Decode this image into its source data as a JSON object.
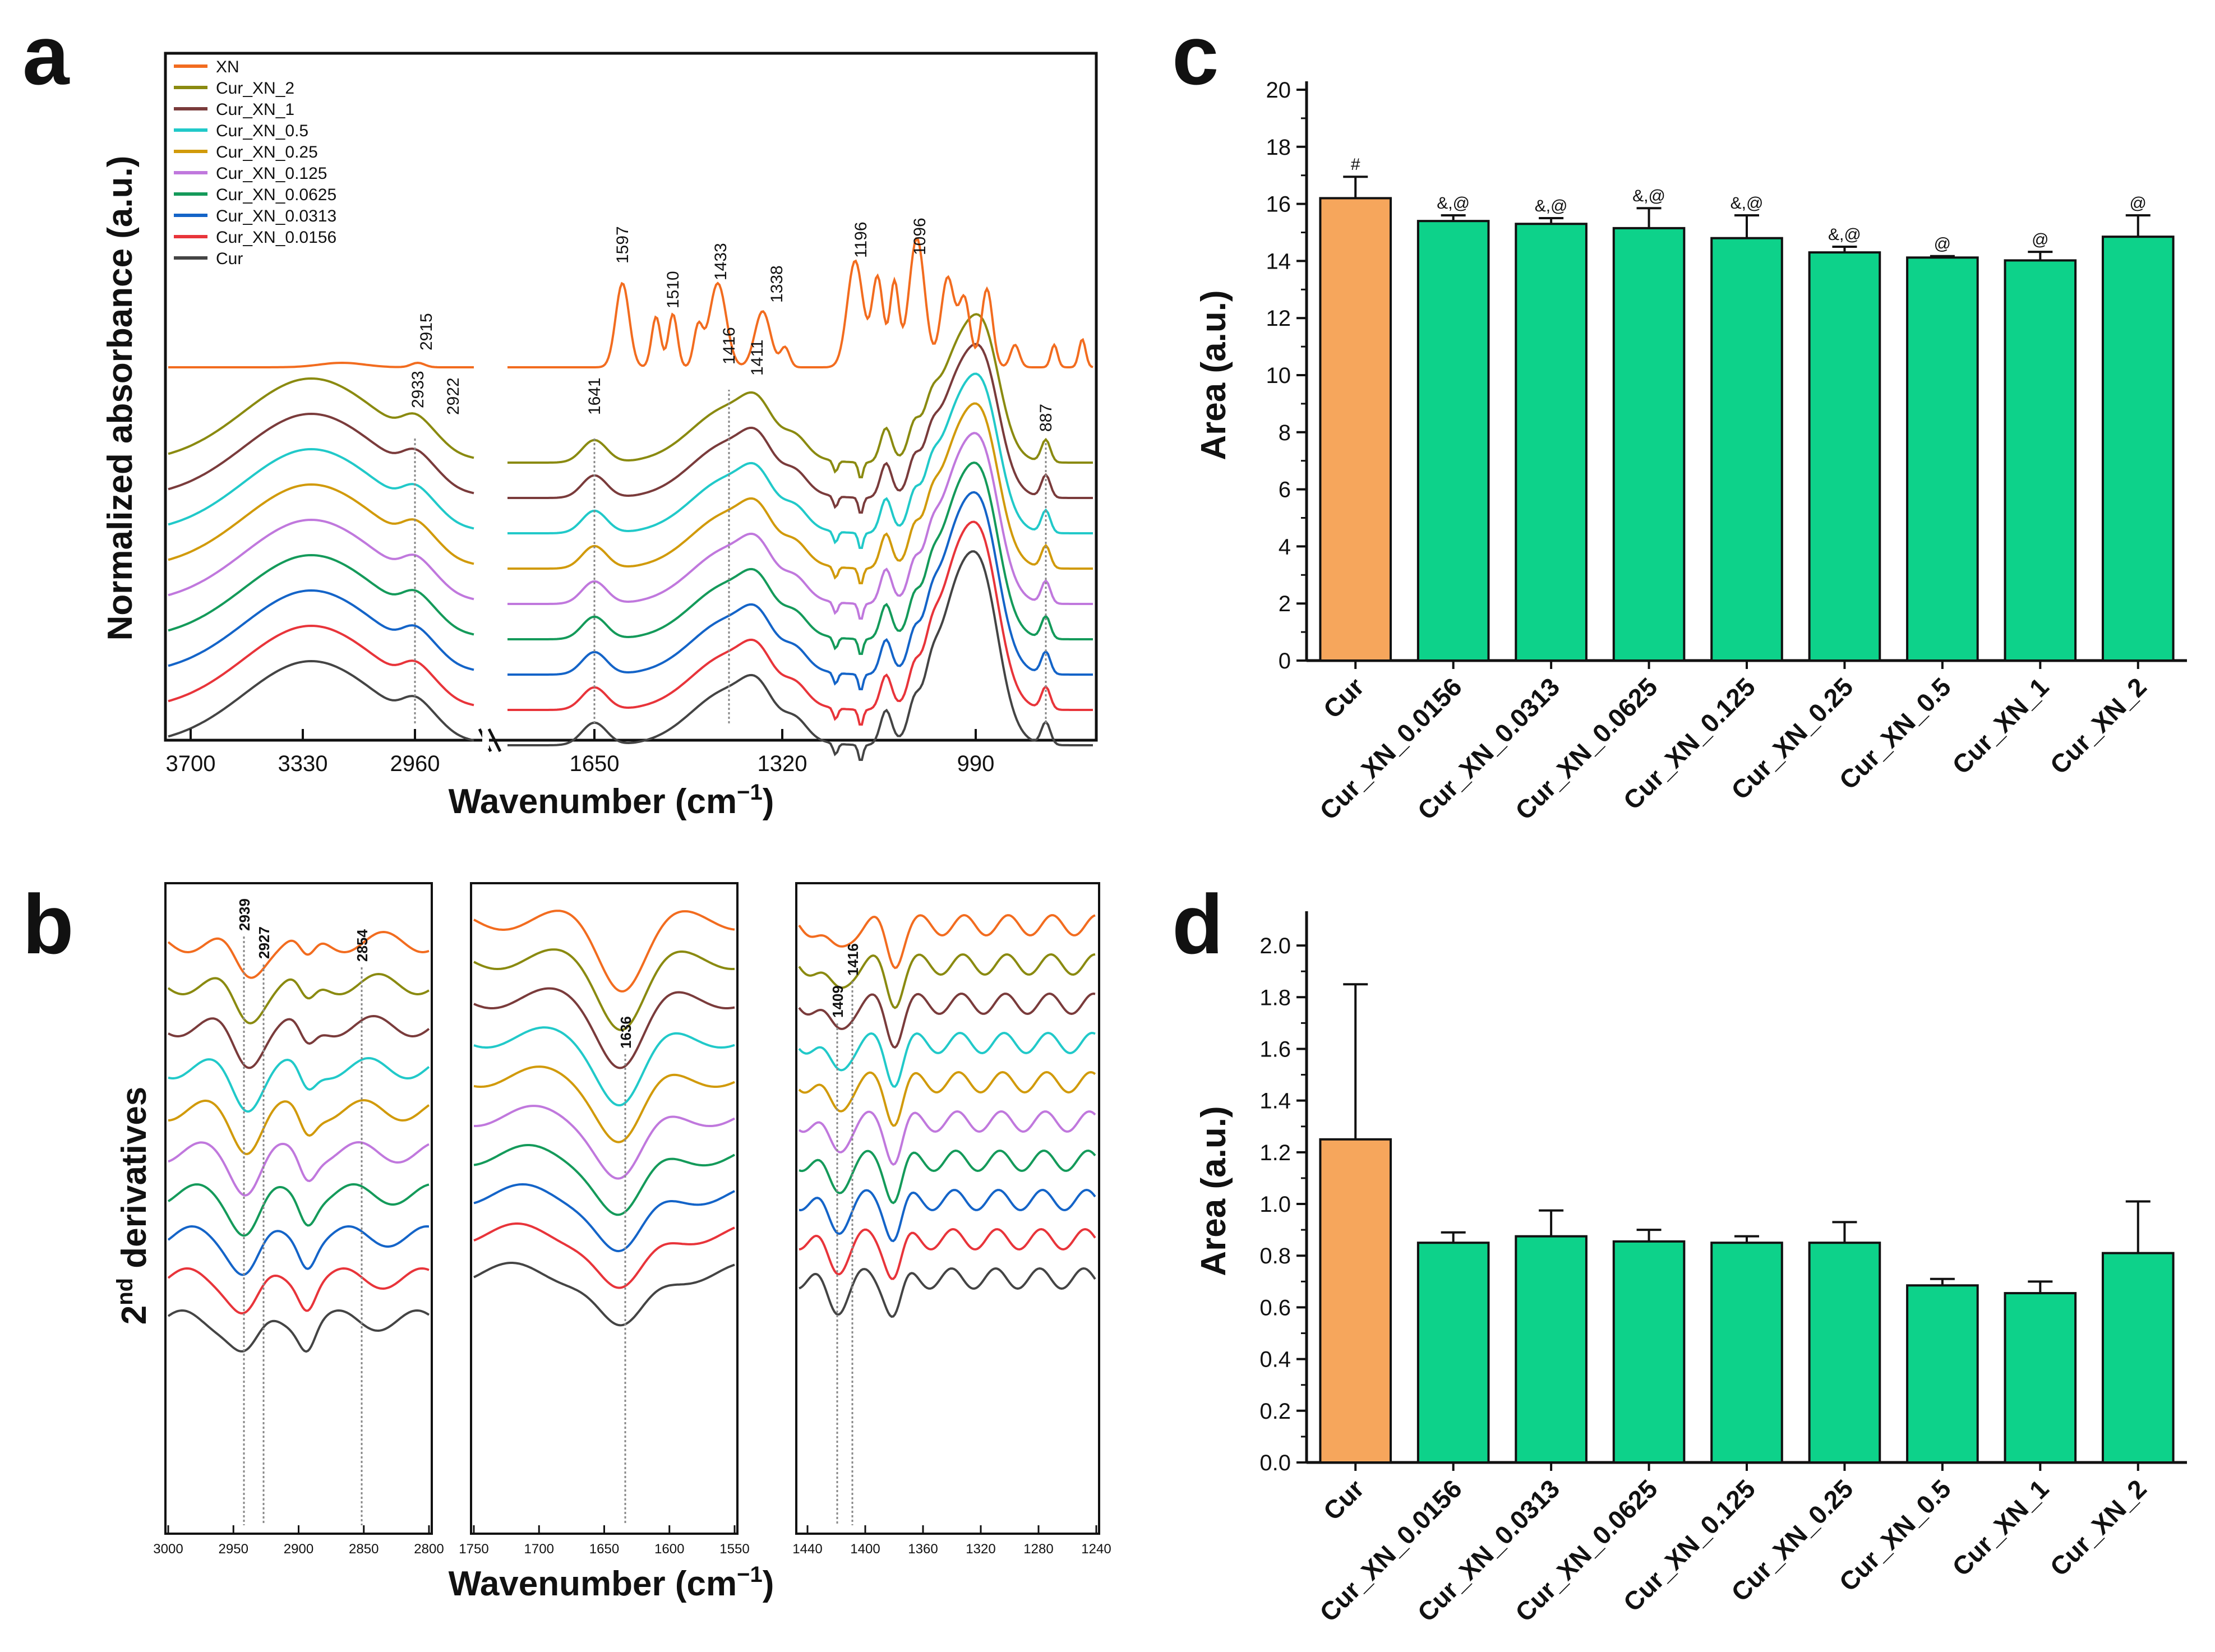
{
  "panels": {
    "a": {
      "letter": "a",
      "ylabel": "Normalized absorbance (a.u.)",
      "xlabel_main": "Wavenumber (cm",
      "xlabel_sup": "−1",
      "xlabel_close": ")",
      "xticks_left": [
        "3700",
        "3330",
        "2960"
      ],
      "xticks_right": [
        "1650",
        "1320",
        "990"
      ],
      "peaks_xn": [
        "2915",
        "1597",
        "1510",
        "1433",
        "1338",
        "1196",
        "1096"
      ],
      "peaks_other": [
        "2933",
        "2922",
        "1641",
        "1416",
        "1411",
        "887"
      ],
      "legend": [
        "XN",
        "Cur_XN_2",
        "Cur_XN_1",
        "Cur_XN_0.5",
        "Cur_XN_0.25",
        "Cur_XN_0.125",
        "Cur_XN_0.0625",
        "Cur_XN_0.0313",
        "Cur_XN_0.0156",
        "Cur"
      ]
    },
    "b": {
      "letter": "b",
      "ylabel_pre": "2",
      "ylabel_sup": "nd",
      "ylabel_post": " derivatives",
      "xlabel_main": "Wavenumber (cm",
      "xlabel_sup": "−1",
      "xlabel_close": ")",
      "sub1_ticks": [
        "3000",
        "2950",
        "2900",
        "2850",
        "2800"
      ],
      "sub2_ticks": [
        "1750",
        "1700",
        "1650",
        "1600",
        "1550"
      ],
      "sub3_ticks": [
        "1440",
        "1400",
        "1360",
        "1320",
        "1280",
        "1240"
      ],
      "sub1_peaks": [
        "2939",
        "2927",
        "2854"
      ],
      "sub2_peaks": [
        "1636"
      ],
      "sub3_peaks": [
        "1409",
        "1416"
      ]
    },
    "c": {
      "letter": "c"
    },
    "d": {
      "letter": "d"
    }
  },
  "series_colors": {
    "XN": "#f26c1f",
    "Cur_XN_2": "#8a8a10",
    "Cur_XN_1": "#7a3b3b",
    "Cur_XN_0.5": "#21c9c9",
    "Cur_XN_0.25": "#d19a0a",
    "Cur_XN_0.125": "#c078dd",
    "Cur_XN_0.0625": "#149a5a",
    "Cur_XN_0.0313": "#1464c8",
    "Cur_XN_0.0156": "#e8343a",
    "Cur": "#444444"
  },
  "chart_data": [
    {
      "panel": "c",
      "type": "bar",
      "title": "",
      "xlabel": "",
      "ylabel": "Area (a.u.)",
      "categories": [
        "Cur",
        "Cur_XN_0.0156",
        "Cur_XN_0.0313",
        "Cur_XN_0.0625",
        "Cur_XN_0.125",
        "Cur_XN_0.25",
        "Cur_XN_0.5",
        "Cur_XN_1",
        "Cur_XN_2"
      ],
      "values": [
        16.2,
        15.4,
        15.3,
        15.15,
        14.8,
        14.3,
        14.12,
        14.02,
        14.85
      ],
      "errors": [
        0.75,
        0.2,
        0.2,
        0.7,
        0.8,
        0.2,
        0.05,
        0.3,
        0.75
      ],
      "annotations": [
        "#",
        "&,@",
        "&,@",
        "&,@",
        "&,@",
        "&,@",
        "@",
        "@",
        "@"
      ],
      "bar_colors": [
        "#f6a65c",
        "#0dd28a",
        "#0dd28a",
        "#0dd28a",
        "#0dd28a",
        "#0dd28a",
        "#0dd28a",
        "#0dd28a",
        "#0dd28a"
      ],
      "ylim": [
        0,
        20
      ],
      "yticks": [
        "0",
        "2",
        "4",
        "6",
        "8",
        "10",
        "12",
        "14",
        "16",
        "18",
        "20"
      ],
      "ytick_values": [
        0,
        2,
        4,
        6,
        8,
        10,
        12,
        14,
        16,
        18,
        20
      ]
    },
    {
      "panel": "d",
      "type": "bar",
      "title": "",
      "xlabel": "",
      "ylabel": "Area (a.u.)",
      "categories": [
        "Cur",
        "Cur_XN_0.0156",
        "Cur_XN_0.0313",
        "Cur_XN_0.0625",
        "Cur_XN_0.125",
        "Cur_XN_0.25",
        "Cur_XN_0.5",
        "Cur_XN_1",
        "Cur_XN_2"
      ],
      "values": [
        1.25,
        0.85,
        0.875,
        0.855,
        0.85,
        0.85,
        0.685,
        0.655,
        0.81
      ],
      "errors": [
        0.6,
        0.04,
        0.1,
        0.045,
        0.025,
        0.08,
        0.025,
        0.045,
        0.2
      ],
      "annotations": [],
      "bar_colors": [
        "#f6a65c",
        "#0dd28a",
        "#0dd28a",
        "#0dd28a",
        "#0dd28a",
        "#0dd28a",
        "#0dd28a",
        "#0dd28a",
        "#0dd28a"
      ],
      "ylim": [
        0,
        2.1
      ],
      "yticks": [
        "0.0",
        "0.2",
        "0.4",
        "0.6",
        "0.8",
        "1.0",
        "1.2",
        "1.4",
        "1.6",
        "1.8",
        "2.0"
      ],
      "ytick_values": [
        0,
        0.2,
        0.4,
        0.6,
        0.8,
        1.0,
        1.2,
        1.4,
        1.6,
        1.8,
        2.0
      ]
    }
  ]
}
